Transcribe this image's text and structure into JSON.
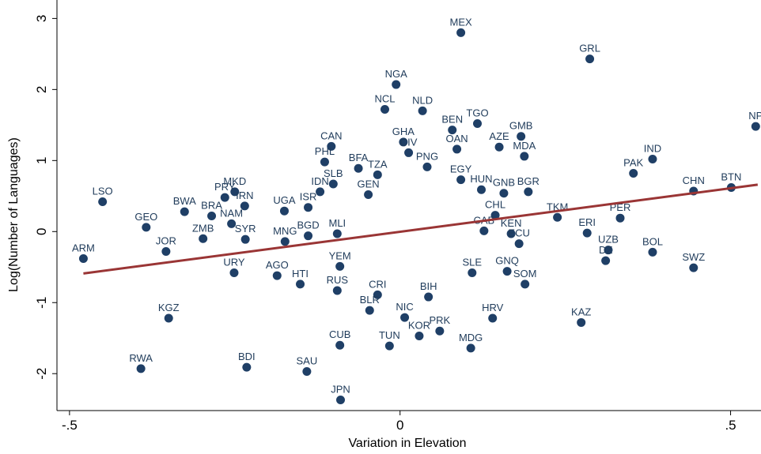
{
  "chart_data": {
    "type": "scatter",
    "x_label": "Variation in Elevation",
    "y_label": "Log(Number of Languages)",
    "xlim": [
      -0.519,
      0.546
    ],
    "ylim": [
      -2.52,
      3.26
    ],
    "xticks": [
      {
        "value": -0.5,
        "label": "-.5"
      },
      0,
      {
        "value": 0.5,
        "label": ".5"
      }
    ],
    "yticks": [
      -2,
      -1,
      0,
      1,
      2,
      3
    ],
    "color": "#1f3f66",
    "labels": [
      "MEX",
      "GRL",
      "NGA",
      "NCL",
      "NLD",
      "TGO",
      "BEN",
      "GMB",
      "AZE",
      "MDA",
      "GHA",
      "CIV",
      "OAN",
      "NP",
      "IND",
      "PAK",
      "CHN",
      "BTN",
      "CAN",
      "PHL",
      "BFA",
      "TZA",
      "PNG",
      "EGY",
      "SLB",
      "IDN",
      "GEN",
      "HUN",
      "GNB",
      "BGR",
      "MKD",
      "PRY",
      "IRN",
      "LSO",
      "BWA",
      "BRA",
      "NAM",
      "UGA",
      "ISR",
      "GEO",
      "ZMB",
      "SYR",
      "JOR",
      "ARM",
      "MNG",
      "BGD",
      "MLI",
      "CHL",
      "TKM",
      "PER",
      "ERI",
      "KEN",
      "ECU",
      "CAB",
      "UZB",
      "DZ",
      "BOL",
      "SWZ",
      "URY",
      "AGO",
      "GNQ",
      "SOM",
      "SLE",
      "HTI",
      "YEM",
      "RUS",
      "CRI",
      "BIH",
      "KGZ",
      "HRV",
      "KAZ",
      "BLR",
      "NIC",
      "PRK",
      "KOR",
      "MDG",
      "CUB",
      "TUN",
      "RWA",
      "BDI",
      "SAU",
      "JPN"
    ],
    "x": [
      0.092,
      0.287,
      -0.006,
      -0.023,
      0.034,
      0.117,
      0.079,
      0.183,
      0.15,
      0.188,
      0.005,
      0.013,
      0.086,
      0.538,
      0.382,
      0.353,
      0.444,
      0.501,
      -0.104,
      -0.114,
      -0.063,
      -0.034,
      0.041,
      0.092,
      -0.101,
      -0.121,
      -0.048,
      0.123,
      0.157,
      0.194,
      -0.25,
      -0.265,
      -0.235,
      -0.45,
      -0.326,
      -0.285,
      -0.255,
      -0.175,
      -0.139,
      -0.384,
      -0.298,
      -0.234,
      -0.354,
      -0.479,
      -0.174,
      -0.139,
      -0.095,
      0.144,
      0.238,
      0.333,
      0.283,
      0.168,
      0.18,
      0.127,
      0.315,
      0.311,
      0.382,
      0.444,
      -0.251,
      -0.186,
      0.162,
      0.189,
      0.109,
      -0.151,
      -0.091,
      -0.095,
      -0.034,
      0.043,
      -0.35,
      0.14,
      0.274,
      -0.046,
      0.007,
      0.06,
      0.029,
      0.107,
      -0.091,
      -0.016,
      -0.392,
      -0.232,
      -0.141,
      -0.09
    ],
    "values": [
      2.8,
      2.43,
      2.07,
      1.72,
      1.7,
      1.52,
      1.43,
      1.34,
      1.19,
      1.06,
      1.26,
      1.11,
      1.16,
      1.48,
      1.02,
      0.82,
      0.57,
      0.62,
      1.2,
      0.98,
      0.89,
      0.8,
      0.91,
      0.73,
      0.67,
      0.56,
      0.52,
      0.59,
      0.54,
      0.56,
      0.56,
      0.48,
      0.36,
      0.42,
      0.28,
      0.22,
      0.11,
      0.29,
      0.34,
      0.06,
      -0.1,
      -0.11,
      -0.28,
      -0.38,
      -0.14,
      -0.06,
      -0.03,
      0.23,
      0.2,
      0.19,
      -0.02,
      -0.03,
      -0.17,
      0.01,
      -0.26,
      -0.41,
      -0.29,
      -0.51,
      -0.58,
      -0.62,
      -0.56,
      -0.74,
      -0.58,
      -0.74,
      -0.49,
      -0.83,
      -0.89,
      -0.92,
      -1.22,
      -1.22,
      -1.28,
      -1.11,
      -1.21,
      -1.4,
      -1.47,
      -1.64,
      -1.6,
      -1.61,
      -1.93,
      -1.91,
      -1.97,
      -2.37
    ],
    "fit_line": {
      "x": [
        -0.479,
        0.541
      ],
      "values": [
        -0.59,
        0.66
      ],
      "color": "#9a3535"
    }
  }
}
